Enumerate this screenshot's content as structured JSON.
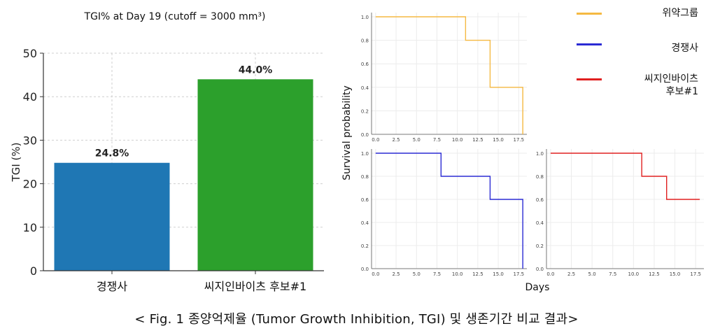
{
  "chart_data": [
    {
      "type": "bar",
      "title": "TGI% at Day 19 (cutoff = 3000 mm³)",
      "xlabel": "",
      "ylabel": "TGI (%)",
      "categories": [
        "경쟁사",
        "씨지인바이츠 후보#1"
      ],
      "values": [
        24.8,
        44.0
      ],
      "value_labels": [
        "24.8%",
        "44.0%"
      ],
      "colors": [
        "#1f77b4",
        "#2ca02c"
      ],
      "ylim": [
        0,
        50
      ],
      "yticks": [
        "0",
        "10",
        "20",
        "30",
        "40",
        "50"
      ],
      "grid": true
    },
    {
      "type": "line",
      "step": true,
      "shared_ylabel": "Survival probability",
      "shared_xlabel": "Days",
      "xticks": [
        "0.0",
        "2.5",
        "5.0",
        "7.5",
        "10.0",
        "12.5",
        "15.0",
        "17.5"
      ],
      "yticks": [
        "0.0",
        "0.2",
        "0.4",
        "0.6",
        "0.8",
        "1.0"
      ],
      "ylim": [
        0,
        1.0
      ],
      "grid": true,
      "legend_position": "right",
      "series": [
        {
          "name": "위약그룹",
          "color": "#f5b942",
          "x": [
            0,
            11,
            11,
            14,
            14,
            18,
            18
          ],
          "y": [
            1.0,
            1.0,
            0.8,
            0.8,
            0.4,
            0.4,
            0.0
          ]
        },
        {
          "name": "경쟁사",
          "color": "#2b2bd4",
          "x": [
            0,
            8,
            8,
            14,
            14,
            18,
            18
          ],
          "y": [
            1.0,
            1.0,
            0.8,
            0.8,
            0.6,
            0.6,
            0.0
          ]
        },
        {
          "name": "씨지인바이츠\n후보#1",
          "color": "#e02020",
          "x": [
            0,
            11,
            11,
            14,
            14,
            18
          ],
          "y": [
            1.0,
            1.0,
            0.8,
            0.8,
            0.6,
            0.6
          ]
        }
      ]
    }
  ],
  "caption": "< Fig. 1  종양억제율  (Tumor Growth Inhibition, TGI)  및  생존기간  비교  결과>"
}
